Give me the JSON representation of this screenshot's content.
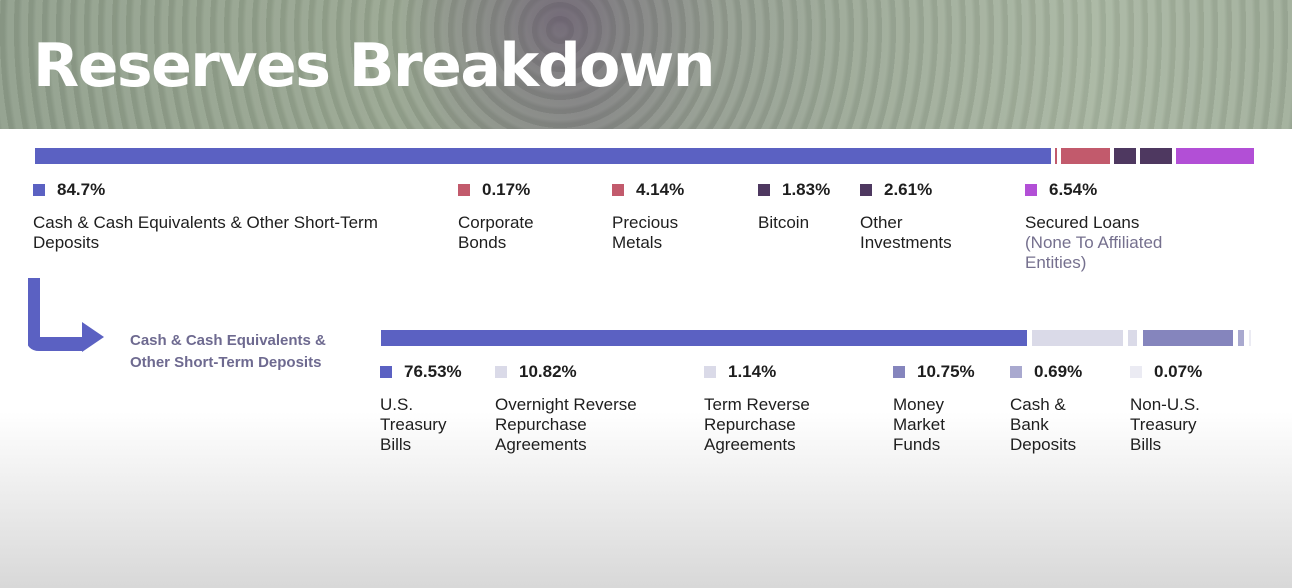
{
  "title": "Reserves Breakdown",
  "sub_heading": "Cash & Cash Equivalents & Other Short-Term Deposits",
  "chart_data": [
    {
      "type": "bar",
      "orientation": "horizontal-stacked",
      "title": "Reserves Breakdown",
      "unit": "%",
      "series": [
        {
          "name": "Cash & Cash Equivalents & Other Short-Term Deposits",
          "value": 84.7,
          "label": "84.7%",
          "color": "#5b61c2",
          "label_lines": [
            "Cash & Cash Equivalents & Other Short-Term",
            "Deposits"
          ]
        },
        {
          "name": "Corporate Bonds",
          "value": 0.17,
          "label": "0.17%",
          "color": "#c25a6c",
          "label_lines": [
            "Corporate",
            "Bonds"
          ]
        },
        {
          "name": "Precious Metals",
          "value": 4.14,
          "label": "4.14%",
          "color": "#c25a6c",
          "label_lines": [
            "Precious",
            "Metals"
          ]
        },
        {
          "name": "Bitcoin",
          "value": 1.83,
          "label": "1.83%",
          "color": "#4e3860",
          "label_lines": [
            "Bitcoin"
          ]
        },
        {
          "name": "Other Investments",
          "value": 2.61,
          "label": "2.61%",
          "color": "#4e3860",
          "label_lines": [
            "Other",
            "Investments"
          ]
        },
        {
          "name": "Secured Loans",
          "value": 6.54,
          "label": "6.54%",
          "color": "#b24fd6",
          "label_lines": [
            "Secured Loans"
          ],
          "sub_lines": [
            "(None To Affiliated",
            "Entities)"
          ]
        }
      ]
    },
    {
      "type": "bar",
      "orientation": "horizontal-stacked",
      "title": "Cash & Cash Equivalents & Other Short-Term Deposits",
      "unit": "%",
      "series": [
        {
          "name": "U.S. Treasury Bills",
          "value": 76.53,
          "label": "76.53%",
          "color": "#5b61c2",
          "label_lines": [
            "U.S.",
            "Treasury",
            "Bills"
          ]
        },
        {
          "name": "Overnight Reverse Repurchase Agreements",
          "value": 10.82,
          "label": "10.82%",
          "color": "#dadae8",
          "label_lines": [
            "Overnight Reverse",
            "Repurchase",
            "Agreements"
          ]
        },
        {
          "name": "Term Reverse Repurchase Agreements",
          "value": 1.14,
          "label": "1.14%",
          "color": "#dadae8",
          "label_lines": [
            "Term Reverse",
            "Repurchase",
            "Agreements"
          ]
        },
        {
          "name": "Money Market Funds",
          "value": 10.75,
          "label": "10.75%",
          "color": "#8585bd",
          "label_lines": [
            "Money",
            "Market",
            "Funds"
          ]
        },
        {
          "name": "Cash & Bank Deposits",
          "value": 0.69,
          "label": "0.69%",
          "color": "#a9a9cf",
          "label_lines": [
            "Cash &",
            "Bank",
            "Deposits"
          ]
        },
        {
          "name": "Non-U.S. Treasury Bills",
          "value": 0.07,
          "label": "0.07%",
          "color": "#ebebf3",
          "label_lines": [
            "Non-U.S.",
            "Treasury",
            "Bills"
          ]
        }
      ]
    }
  ]
}
